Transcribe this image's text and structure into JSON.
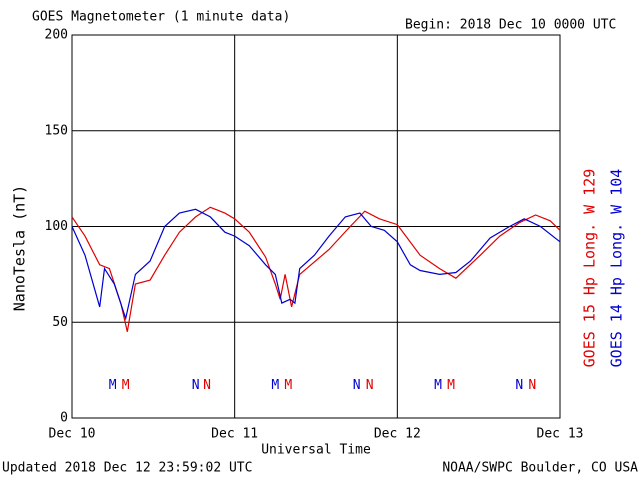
{
  "chart_data": {
    "type": "line",
    "title": "GOES Magnetometer (1 minute data)",
    "subtitle": "Begin:  2018 Dec 10 0000 UTC",
    "footer_left": "Updated 2018 Dec 12 23:59:02 UTC",
    "footer_right": "NOAA/SWPC Boulder, CO USA",
    "x_label": "Universal Time",
    "y_label": "NanoTesla (nT)",
    "xlim": [
      0,
      3
    ],
    "xticks": [
      {
        "value": 0,
        "label": "Dec 10"
      },
      {
        "value": 1,
        "label": "Dec 11"
      },
      {
        "value": 2,
        "label": "Dec 12"
      },
      {
        "value": 3,
        "label": "Dec 13"
      }
    ],
    "ylim": [
      0,
      200
    ],
    "yticks": [
      0,
      50,
      100,
      150,
      200
    ],
    "grid": true,
    "series": [
      {
        "name": "GOES 15 Hp  Long. W 129",
        "color": "#e00000",
        "x": [
          0,
          0.08,
          0.17,
          0.23,
          0.3,
          0.34,
          0.39,
          0.48,
          0.57,
          0.66,
          0.76,
          0.85,
          0.94,
          1.0,
          1.09,
          1.19,
          1.25,
          1.28,
          1.31,
          1.35,
          1.4,
          1.58,
          1.71,
          1.8,
          1.89,
          2.0,
          2.14,
          2.26,
          2.36,
          2.51,
          2.63,
          2.75,
          2.85,
          2.94,
          3.0
        ],
        "values": [
          105,
          95,
          80,
          78,
          60,
          45,
          70,
          72,
          85,
          97,
          105,
          110,
          107,
          104,
          97,
          84,
          70,
          62,
          75,
          58,
          75,
          88,
          100,
          108,
          104,
          101,
          85,
          78,
          73,
          85,
          95,
          102,
          106,
          103,
          98
        ]
      },
      {
        "name": "GOES 14 Hp  Long. W 104",
        "color": "#0000d0",
        "x": [
          0,
          0.08,
          0.17,
          0.2,
          0.26,
          0.33,
          0.39,
          0.48,
          0.57,
          0.66,
          0.76,
          0.85,
          0.94,
          1.0,
          1.09,
          1.19,
          1.25,
          1.29,
          1.34,
          1.37,
          1.4,
          1.49,
          1.58,
          1.68,
          1.77,
          1.84,
          1.92,
          2.0,
          2.08,
          2.14,
          2.26,
          2.36,
          2.45,
          2.57,
          2.69,
          2.78,
          2.88,
          3.0
        ],
        "values": [
          100,
          85,
          58,
          78,
          70,
          52,
          75,
          82,
          100,
          107,
          109,
          105,
          97,
          95,
          90,
          80,
          75,
          60,
          62,
          60,
          78,
          85,
          95,
          105,
          107,
          100,
          98,
          92,
          80,
          77,
          75,
          76,
          82,
          94,
          100,
          104,
          100,
          92
        ]
      }
    ],
    "markers": [
      {
        "label": "M",
        "x": 0.25,
        "y": 17,
        "color": "#0000d0"
      },
      {
        "label": "M",
        "x": 0.33,
        "y": 17,
        "color": "#e00000"
      },
      {
        "label": "N",
        "x": 0.76,
        "y": 17,
        "color": "#0000d0"
      },
      {
        "label": "N",
        "x": 0.83,
        "y": 17,
        "color": "#e00000"
      },
      {
        "label": "M",
        "x": 1.25,
        "y": 17,
        "color": "#0000d0"
      },
      {
        "label": "M",
        "x": 1.33,
        "y": 17,
        "color": "#e00000"
      },
      {
        "label": "N",
        "x": 1.75,
        "y": 17,
        "color": "#0000d0"
      },
      {
        "label": "N",
        "x": 1.83,
        "y": 17,
        "color": "#e00000"
      },
      {
        "label": "M",
        "x": 2.25,
        "y": 17,
        "color": "#0000d0"
      },
      {
        "label": "M",
        "x": 2.33,
        "y": 17,
        "color": "#e00000"
      },
      {
        "label": "N",
        "x": 2.75,
        "y": 17,
        "color": "#0000d0"
      },
      {
        "label": "N",
        "x": 2.83,
        "y": 17,
        "color": "#e00000"
      }
    ]
  }
}
